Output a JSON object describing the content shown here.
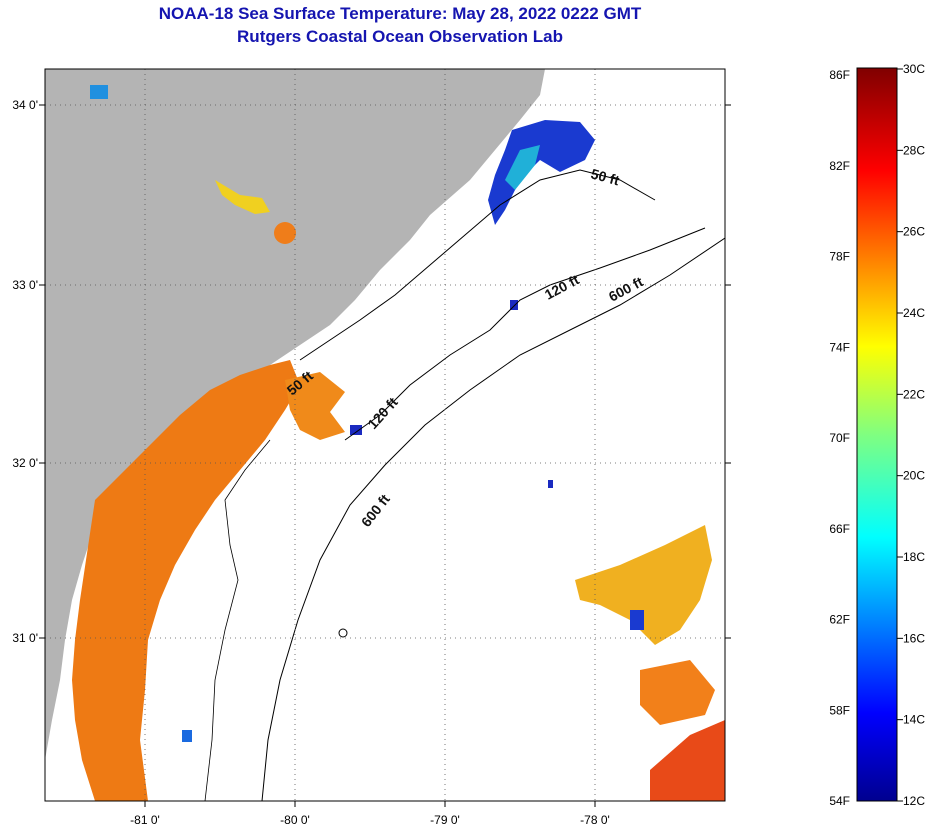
{
  "title": "NOAA-18 Sea Surface Temperature:  May 28, 2022 0222 GMT",
  "subtitle": "Rutgers Coastal Ocean Observation Lab",
  "map": {
    "lon_ticks": [
      "-81 0'",
      "-80 0'",
      "-79 0'",
      "-78 0'"
    ],
    "lat_ticks": [
      "34 0'",
      "33 0'",
      "32 0'",
      "31 0'"
    ],
    "contours": [
      {
        "label": "50 ft"
      },
      {
        "label": "120 ft"
      },
      {
        "label": "600 ft"
      },
      {
        "label": "50 ft"
      },
      {
        "label": "120 ft"
      },
      {
        "label": "600 ft"
      }
    ],
    "land_color": "#b4b4b4",
    "ocean_color": "#ffffff"
  },
  "colorbar": {
    "fahrenheit": [
      "86F",
      "82F",
      "78F",
      "74F",
      "70F",
      "66F",
      "62F",
      "58F",
      "54F"
    ],
    "celsius": [
      "30C",
      "28C",
      "26C",
      "24C",
      "22C",
      "20C",
      "18C",
      "16C",
      "14C",
      "12C"
    ],
    "colormap": "jet"
  }
}
